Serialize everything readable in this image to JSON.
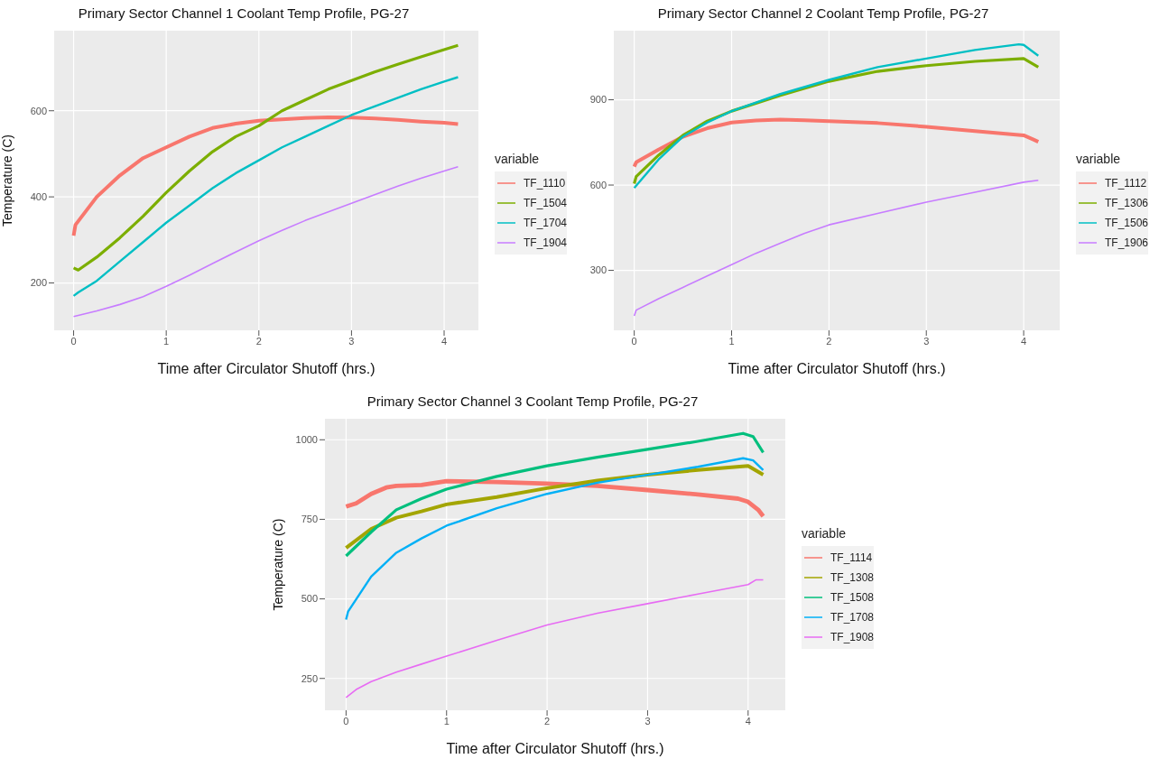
{
  "chart_data": [
    {
      "type": "line",
      "title": "Primary Sector Channel 1 Coolant Temp Profile, PG-27",
      "xlabel": "Time after Circulator Shutoff (hrs.)",
      "ylabel": "Temperature (C)",
      "legend_title": "variable",
      "legend": "right",
      "grid": true,
      "xlim": [
        -0.21,
        4.37
      ],
      "xticks": [
        0,
        1,
        2,
        3,
        4
      ],
      "ylim": [
        90,
        786
      ],
      "yticks": [
        200,
        400,
        600
      ],
      "series": [
        {
          "name": "TF_1110",
          "color": "#f8766d",
          "x": [
            0,
            0.02,
            0.25,
            0.5,
            0.75,
            1,
            1.25,
            1.5,
            1.75,
            2,
            2.25,
            2.5,
            2.75,
            3,
            3.25,
            3.5,
            3.75,
            4,
            4.15
          ],
          "values": [
            310,
            335,
            400,
            450,
            490,
            515,
            540,
            560,
            570,
            577,
            580,
            583,
            585,
            584,
            582,
            579,
            575,
            572,
            569
          ]
        },
        {
          "name": "TF_1504",
          "color": "#7cae00",
          "x": [
            0,
            0.05,
            0.25,
            0.5,
            0.75,
            1,
            1.25,
            1.5,
            1.75,
            2,
            2.25,
            2.5,
            2.75,
            3,
            3.25,
            3.5,
            3.75,
            4,
            4.15
          ],
          "values": [
            235,
            230,
            260,
            305,
            355,
            410,
            460,
            505,
            540,
            565,
            600,
            625,
            650,
            670,
            690,
            708,
            725,
            742,
            752
          ]
        },
        {
          "name": "TF_1704",
          "color": "#00bfc4",
          "x": [
            0,
            0.05,
            0.25,
            0.5,
            0.75,
            1,
            1.25,
            1.5,
            1.75,
            2,
            2.25,
            2.5,
            2.75,
            3,
            3.25,
            3.5,
            3.75,
            4,
            4.15
          ],
          "values": [
            170,
            178,
            205,
            250,
            295,
            340,
            380,
            420,
            455,
            485,
            515,
            540,
            565,
            590,
            610,
            630,
            650,
            668,
            678
          ]
        },
        {
          "name": "TF_1904",
          "color": "#c77cff",
          "x": [
            0,
            0.25,
            0.5,
            0.75,
            1,
            1.25,
            1.5,
            1.75,
            2,
            2.25,
            2.5,
            2.75,
            3,
            3.25,
            3.5,
            3.75,
            4,
            4.15
          ],
          "values": [
            122,
            135,
            150,
            168,
            192,
            218,
            245,
            272,
            298,
            322,
            345,
            365,
            385,
            405,
            425,
            443,
            460,
            470
          ]
        }
      ]
    },
    {
      "type": "line",
      "title": "Primary Sector Channel 2 Coolant Temp Profile, PG-27",
      "xlabel": "Time after Circulator Shutoff (hrs.)",
      "legend_title": "variable",
      "legend": "right",
      "grid": true,
      "xlim": [
        -0.21,
        4.37
      ],
      "xticks": [
        0,
        1,
        2,
        3,
        4
      ],
      "ylim": [
        89,
        1143
      ],
      "yticks": [
        300,
        600,
        900
      ],
      "series": [
        {
          "name": "TF_1112",
          "color": "#f8766d",
          "x": [
            0,
            0.02,
            0.25,
            0.5,
            0.75,
            1,
            1.25,
            1.5,
            1.75,
            2,
            2.5,
            3,
            3.5,
            4,
            4.1,
            4.15
          ],
          "values": [
            665,
            680,
            725,
            770,
            800,
            820,
            827,
            830,
            828,
            825,
            818,
            805,
            790,
            775,
            760,
            752
          ]
        },
        {
          "name": "TF_1306",
          "color": "#7cae00",
          "x": [
            0,
            0.02,
            0.25,
            0.5,
            0.75,
            1,
            1.5,
            2,
            2.5,
            3,
            3.5,
            4,
            4.15
          ],
          "values": [
            605,
            630,
            705,
            775,
            825,
            860,
            915,
            965,
            1000,
            1020,
            1035,
            1045,
            1015
          ]
        },
        {
          "name": "TF_1506",
          "color": "#00bfc4",
          "x": [
            0,
            0.25,
            0.5,
            0.75,
            1,
            1.5,
            2,
            2.5,
            3,
            3.5,
            3.95,
            4,
            4.15
          ],
          "values": [
            590,
            690,
            770,
            820,
            860,
            920,
            970,
            1015,
            1045,
            1075,
            1095,
            1093,
            1055
          ]
        },
        {
          "name": "TF_1906",
          "color": "#c77cff",
          "x": [
            0,
            0.02,
            0.25,
            0.5,
            0.75,
            1,
            1.25,
            1.5,
            1.75,
            2,
            2.5,
            3,
            3.5,
            4,
            4.15
          ],
          "values": [
            140,
            160,
            200,
            240,
            280,
            320,
            360,
            395,
            430,
            460,
            500,
            540,
            575,
            610,
            617
          ]
        }
      ]
    },
    {
      "type": "line",
      "title": "Primary Sector Channel 3 Coolant Temp Profile, PG-27",
      "xlabel": "Time after Circulator Shutoff (hrs.)",
      "ylabel": "Temperature (C)",
      "legend_title": "variable",
      "legend": "right",
      "grid": true,
      "xlim": [
        -0.21,
        4.37
      ],
      "xticks": [
        0,
        1,
        2,
        3,
        4
      ],
      "ylim": [
        150,
        1066
      ],
      "yticks": [
        250,
        500,
        750,
        1000
      ],
      "series": [
        {
          "name": "TF_1114",
          "color": "#f8766d",
          "x": [
            0,
            0.1,
            0.25,
            0.4,
            0.5,
            0.75,
            1,
            1.5,
            2,
            2.5,
            3,
            3.5,
            3.9,
            4,
            4.1,
            4.15
          ],
          "values": [
            790,
            800,
            830,
            850,
            855,
            858,
            870,
            867,
            862,
            855,
            842,
            828,
            815,
            805,
            780,
            760
          ]
        },
        {
          "name": "TF_1308",
          "color": "#a3a500",
          "x": [
            0,
            0.25,
            0.5,
            0.75,
            1,
            1.5,
            2,
            2.5,
            3,
            3.5,
            4,
            4.15
          ],
          "values": [
            660,
            720,
            755,
            775,
            797,
            820,
            848,
            872,
            890,
            905,
            918,
            890
          ]
        },
        {
          "name": "TF_1508",
          "color": "#00bf7d",
          "x": [
            0,
            0.25,
            0.5,
            0.75,
            1,
            1.5,
            2,
            2.5,
            3,
            3.5,
            3.95,
            4.05,
            4.15
          ],
          "values": [
            635,
            710,
            780,
            815,
            845,
            885,
            918,
            945,
            970,
            995,
            1020,
            1010,
            960
          ]
        },
        {
          "name": "TF_1708",
          "color": "#00b0f6",
          "x": [
            0,
            0.02,
            0.25,
            0.5,
            0.75,
            1,
            1.5,
            2,
            2.5,
            3,
            3.5,
            3.95,
            4.05,
            4.15
          ],
          "values": [
            435,
            460,
            570,
            645,
            690,
            730,
            785,
            830,
            865,
            890,
            915,
            942,
            935,
            905
          ]
        },
        {
          "name": "TF_1908",
          "color": "#e76bf3",
          "x": [
            0,
            0.1,
            0.25,
            0.5,
            0.75,
            1,
            1.5,
            2,
            2.5,
            3,
            3.5,
            4,
            4.08,
            4.15
          ],
          "values": [
            190,
            215,
            240,
            270,
            295,
            320,
            370,
            418,
            455,
            485,
            515,
            545,
            560,
            560
          ]
        }
      ]
    }
  ]
}
